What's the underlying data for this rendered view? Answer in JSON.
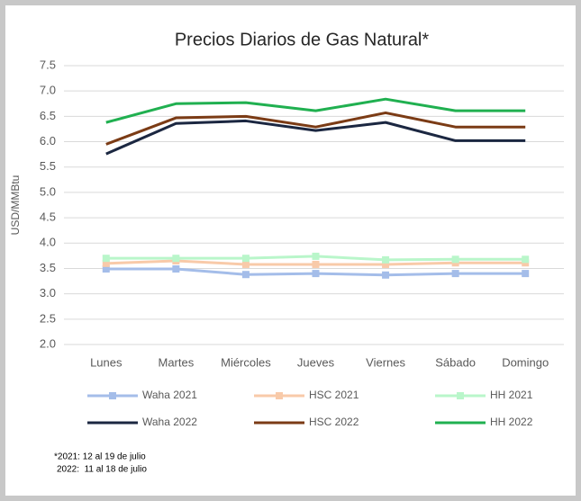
{
  "chart_data": {
    "type": "line",
    "title": "Precios Diarios de Gas Natural*",
    "ylabel": "USD/MMBtu",
    "categories": [
      "Lunes",
      "Martes",
      "Miércoles",
      "Jueves",
      "Viernes",
      "Sábado",
      "Domingo"
    ],
    "ylim": [
      2,
      7.5
    ],
    "yticks": [
      {
        "value": 2,
        "label": "2.0"
      },
      2.5,
      {
        "value": 3,
        "label": "3.0"
      },
      3.5,
      {
        "value": 4,
        "label": "4.0"
      },
      4.5,
      {
        "value": 5,
        "label": "5.0"
      },
      5.5,
      {
        "value": 6,
        "label": "6.0"
      },
      6.5,
      {
        "value": 7,
        "label": "7.0"
      },
      7.5
    ],
    "grid": true,
    "series": [
      {
        "name": "Waha 2021",
        "color": "#a4bde9",
        "marker": "square",
        "values": [
          3.49,
          3.49,
          3.38,
          3.4,
          3.37,
          3.4,
          3.4
        ]
      },
      {
        "name": "HSC 2021",
        "color": "#f8caa9",
        "marker": "square",
        "values": [
          3.6,
          3.65,
          3.58,
          3.58,
          3.58,
          3.61,
          3.61
        ]
      },
      {
        "name": "HH 2021",
        "color": "#b9f6ca",
        "marker": "square",
        "values": [
          3.7,
          3.7,
          3.7,
          3.74,
          3.67,
          3.68,
          3.68
        ]
      },
      {
        "name": "Waha 2022",
        "color": "#1b2741",
        "values": [
          5.76,
          6.36,
          6.41,
          6.22,
          6.38,
          6.02,
          6.02
        ]
      },
      {
        "name": "HSC 2022",
        "color": "#7b3b15",
        "values": [
          5.95,
          6.47,
          6.5,
          6.29,
          6.57,
          6.29,
          6.29
        ]
      },
      {
        "name": "HH 2022",
        "color": "#20b050",
        "values": [
          6.38,
          6.75,
          6.77,
          6.61,
          6.84,
          6.61,
          6.61
        ]
      }
    ],
    "annotations": [
      "*2021: 12 al 19 de julio",
      "2022:  11 al 18 de julio"
    ]
  }
}
